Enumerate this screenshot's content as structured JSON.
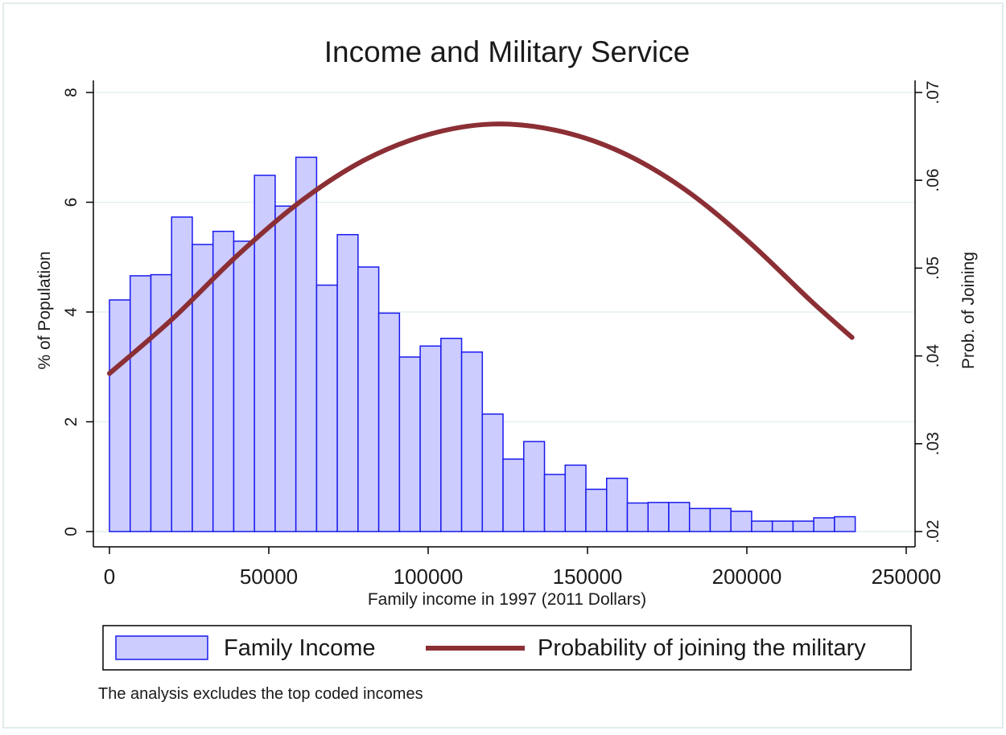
{
  "chart_data": {
    "type": "bar",
    "title": "Income and Military Service",
    "xlabel": "Family income in 1997 (2011 Dollars)",
    "ylabel_left": "% of Population",
    "ylabel_right": "Prob. of Joining",
    "note": "The analysis excludes the top coded incomes",
    "xlim": [
      0,
      250000
    ],
    "ylim_left": [
      0,
      8
    ],
    "ylim_right": [
      0.02,
      0.07
    ],
    "x_ticks": [
      0,
      50000,
      100000,
      150000,
      200000,
      250000
    ],
    "x_tick_labels": [
      "0",
      "50000",
      "100000",
      "150000",
      "200000",
      "250000"
    ],
    "y_left_ticks": [
      0,
      2,
      4,
      6,
      8
    ],
    "y_left_tick_labels": [
      "0",
      "2",
      "4",
      "6",
      "8"
    ],
    "y_right_ticks": [
      0.02,
      0.03,
      0.04,
      0.05,
      0.06,
      0.07
    ],
    "y_right_tick_labels": [
      ".02",
      ".03",
      ".04",
      ".05",
      ".06",
      ".07"
    ],
    "grid": true,
    "legend_position": "bottom",
    "legend": [
      {
        "label": "Family Income",
        "kind": "bar"
      },
      {
        "label": "Probability of joining the military",
        "kind": "line"
      }
    ],
    "colors": {
      "bar_fill": "#ccccff",
      "bar_stroke": "#1a1aee",
      "line": "#8b2f35",
      "grid": "#dfeeee"
    },
    "histogram": {
      "name": "Family Income",
      "bin_width": 6500,
      "bin_starts": [
        0,
        6500,
        13000,
        19500,
        26000,
        32500,
        39000,
        45500,
        52000,
        58500,
        65000,
        71500,
        78000,
        84500,
        91000,
        97500,
        104000,
        110500,
        117000,
        123500,
        130000,
        136500,
        143000,
        149500,
        156000,
        162500,
        169000,
        175500,
        182000,
        188500,
        195000,
        201500,
        208000,
        214500,
        221000,
        227500
      ],
      "values": [
        4.22,
        4.66,
        4.68,
        5.73,
        5.23,
        5.47,
        5.29,
        6.49,
        5.93,
        6.82,
        4.49,
        5.41,
        4.82,
        3.98,
        3.18,
        3.38,
        3.52,
        3.27,
        2.14,
        1.32,
        1.64,
        1.04,
        1.21,
        0.77,
        0.97,
        0.52,
        0.53,
        0.53,
        0.42,
        0.42,
        0.37,
        0.19,
        0.19,
        0.19,
        0.25,
        0.27
      ]
    },
    "line": {
      "name": "Probability of joining the military",
      "x": [
        0,
        20000,
        40000,
        60000,
        80000,
        100000,
        120000,
        140000,
        160000,
        180000,
        200000,
        220000,
        233000
      ],
      "y": [
        0.038,
        0.0443,
        0.0514,
        0.0576,
        0.0623,
        0.0652,
        0.0664,
        0.0657,
        0.0633,
        0.0591,
        0.0532,
        0.0463,
        0.0421
      ]
    }
  }
}
